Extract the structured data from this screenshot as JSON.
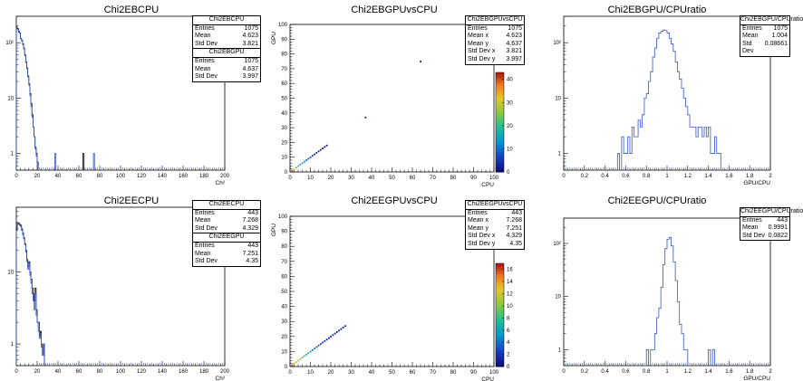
{
  "chart_data": [
    {
      "type": "histogram",
      "title": "Chi2EBCPU",
      "xlabel": "Ch²",
      "ylabel": "",
      "xlim": [
        0,
        200
      ],
      "ylim": [
        0.5,
        300
      ],
      "logy": true,
      "xticks": [
        "0",
        "20",
        "40",
        "60",
        "80",
        "100",
        "120",
        "140",
        "160",
        "180",
        "200"
      ],
      "yticks": [
        "1",
        "10",
        "10²"
      ],
      "series": [
        {
          "name": "Chi2EBCPU",
          "color": "#000000",
          "bins_x": [
            0,
            1,
            2,
            3,
            4,
            5,
            6,
            7,
            8,
            9,
            10,
            11,
            12,
            13,
            14,
            15,
            16,
            17,
            18,
            19,
            20,
            64
          ],
          "values": [
            190,
            180,
            160,
            150,
            120,
            110,
            95,
            80,
            60,
            45,
            35,
            25,
            18,
            12,
            8,
            5,
            3,
            2,
            1.3,
            1,
            0.7,
            1
          ]
        },
        {
          "name": "Chi2EBGPU",
          "color": "#3355cc",
          "bins_x": [
            0,
            1,
            2,
            3,
            4,
            5,
            6,
            7,
            8,
            9,
            10,
            11,
            12,
            13,
            14,
            15,
            16,
            17,
            18,
            19,
            20,
            37,
            74
          ],
          "values": [
            185,
            175,
            155,
            148,
            118,
            108,
            92,
            78,
            58,
            44,
            34,
            24,
            17,
            11,
            7,
            4.5,
            3,
            2,
            1.2,
            0.9,
            0.6,
            1,
            1
          ]
        }
      ],
      "stats": [
        {
          "name": "Chi2EBCPU",
          "rows": [
            [
              "Entries",
              "1075"
            ],
            [
              "Mean",
              "4.623"
            ],
            [
              "Std Dev",
              "3.821"
            ]
          ]
        },
        {
          "name": "Chi2EBGPU",
          "rows": [
            [
              "Entries",
              "1075"
            ],
            [
              "Mean",
              "4.637"
            ],
            [
              "Std Dev",
              "3.997"
            ]
          ]
        }
      ]
    },
    {
      "type": "heatmap",
      "title": "Chi2EBGPUvsCPU",
      "xlabel": "CPU",
      "ylabel": "GPU",
      "xlim": [
        0,
        100
      ],
      "ylim": [
        0,
        100
      ],
      "xticks": [
        "0",
        "10",
        "20",
        "30",
        "40",
        "50",
        "60",
        "70",
        "80",
        "90",
        "100"
      ],
      "yticks": [
        "0",
        "10",
        "20",
        "30",
        "40",
        "50",
        "60",
        "70",
        "80",
        "90",
        "100"
      ],
      "zticks": [
        "0",
        "10",
        "20",
        "30",
        "40"
      ],
      "zmax": 43,
      "points": [
        [
          1,
          1,
          40
        ],
        [
          2,
          2,
          30
        ],
        [
          3,
          3,
          24
        ],
        [
          4,
          4,
          20
        ],
        [
          5,
          5,
          17
        ],
        [
          6,
          6,
          14
        ],
        [
          7,
          7,
          12
        ],
        [
          8,
          8,
          9
        ],
        [
          9,
          9,
          8
        ],
        [
          10,
          10,
          6
        ],
        [
          11,
          11,
          5
        ],
        [
          12,
          12,
          4
        ],
        [
          13,
          13,
          3
        ],
        [
          14,
          14,
          2
        ],
        [
          15,
          15,
          2
        ],
        [
          16,
          16,
          1
        ],
        [
          17,
          17,
          1
        ],
        [
          18,
          18,
          1
        ],
        [
          37,
          37,
          1
        ],
        [
          64,
          75,
          1
        ]
      ],
      "stats": [
        {
          "name": "Chi2EBGPUvsCPU",
          "rows": [
            [
              "Entries",
              "1075"
            ],
            [
              "Mean x",
              "4.623"
            ],
            [
              "Mean y",
              "4.637"
            ],
            [
              "Std Dev x",
              "3.821"
            ],
            [
              "Std Dev y",
              "3.997"
            ]
          ]
        }
      ]
    },
    {
      "type": "histogram",
      "title": "Chi2EBGPU/CPUratio",
      "xlabel": "GPU/CPU",
      "ylabel": "",
      "xlim": [
        0,
        2
      ],
      "ylim": [
        0.5,
        300
      ],
      "logy": true,
      "xticks": [
        "0",
        "0.2",
        "0.4",
        "0.6",
        "0.8",
        "1",
        "1.2",
        "1.4",
        "1.6",
        "1.8",
        "2"
      ],
      "yticks": [
        "1",
        "10",
        "10²"
      ],
      "series": [
        {
          "name": "Chi2EBGPU/CPUratio",
          "color": "#3355cc",
          "bins_x": [
            0.5,
            0.52,
            0.54,
            0.56,
            0.58,
            0.6,
            0.62,
            0.64,
            0.66,
            0.68,
            0.7,
            0.72,
            0.74,
            0.76,
            0.78,
            0.8,
            0.82,
            0.84,
            0.86,
            0.88,
            0.9,
            0.92,
            0.94,
            0.96,
            0.98,
            1.0,
            1.02,
            1.04,
            1.06,
            1.08,
            1.1,
            1.12,
            1.14,
            1.16,
            1.18,
            1.2,
            1.22,
            1.24,
            1.26,
            1.28,
            1.3,
            1.32,
            1.34,
            1.36,
            1.38,
            1.4,
            1.42,
            1.44,
            1.46,
            1.48,
            1.5,
            1.52
          ],
          "values": [
            0,
            1,
            0,
            2,
            1,
            1,
            2,
            1,
            3,
            2,
            2,
            4,
            3,
            5,
            10,
            12,
            20,
            30,
            55,
            80,
            120,
            150,
            160,
            170,
            165,
            150,
            120,
            95,
            70,
            45,
            30,
            22,
            15,
            10,
            7,
            5,
            3,
            3,
            3,
            2,
            3,
            3,
            2,
            3,
            2,
            3,
            1,
            1,
            2,
            1,
            1,
            0
          ]
        }
      ],
      "stats": [
        {
          "name": "Chi2EBGPU/CPUratio",
          "rows": [
            [
              "Entries",
              "1075"
            ],
            [
              "Mean",
              "1.004"
            ],
            [
              "Std Dev",
              "0.08661"
            ]
          ]
        }
      ]
    },
    {
      "type": "histogram",
      "title": "Chi2EECPU",
      "xlabel": "Ch²",
      "ylabel": "",
      "xlim": [
        0,
        200
      ],
      "ylim": [
        0.5,
        80
      ],
      "logy": true,
      "xticks": [
        "0",
        "20",
        "40",
        "60",
        "80",
        "100",
        "120",
        "140",
        "160",
        "180",
        "200"
      ],
      "yticks": [
        "1",
        "10"
      ],
      "series": [
        {
          "name": "Chi2EECPU",
          "color": "#000000",
          "bins_x": [
            0,
            1,
            2,
            3,
            4,
            5,
            6,
            7,
            8,
            9,
            10,
            11,
            12,
            13,
            14,
            15,
            16,
            17,
            18,
            19,
            20,
            21,
            22,
            23,
            24,
            25,
            26
          ],
          "values": [
            40,
            48,
            48,
            46,
            45,
            40,
            35,
            30,
            25,
            20,
            15,
            12,
            14,
            10,
            8,
            6,
            5,
            4,
            6,
            3,
            2,
            2,
            1.3,
            1.5,
            1,
            0.7,
            1
          ]
        },
        {
          "name": "Chi2EEGPU",
          "color": "#3355cc",
          "bins_x": [
            0,
            1,
            2,
            3,
            4,
            5,
            6,
            7,
            8,
            9,
            10,
            11,
            12,
            13,
            14,
            15,
            16,
            17,
            18,
            19,
            20,
            21,
            22,
            23,
            24,
            25,
            26
          ],
          "values": [
            38,
            46,
            47,
            45,
            43,
            38,
            33,
            29,
            24,
            19,
            14,
            11,
            13,
            9,
            7,
            5,
            4,
            3,
            5,
            2.5,
            2,
            1.5,
            1.2,
            1.4,
            0.9,
            0.7,
            1
          ]
        }
      ],
      "stats": [
        {
          "name": "Chi2EECPU",
          "rows": [
            [
              "Entries",
              "443"
            ],
            [
              "Mean",
              "7.268"
            ],
            [
              "Std Dev",
              "4.329"
            ]
          ]
        },
        {
          "name": "Chi2EEGPU",
          "rows": [
            [
              "Entries",
              "443"
            ],
            [
              "Mean",
              "7.251"
            ],
            [
              "Std Dev",
              "4.35"
            ]
          ]
        }
      ]
    },
    {
      "type": "heatmap",
      "title": "Chi2EEGPUvsCPU",
      "xlabel": "CPU",
      "ylabel": "GPU",
      "xlim": [
        0,
        100
      ],
      "ylim": [
        0,
        100
      ],
      "xticks": [
        "0",
        "10",
        "20",
        "30",
        "40",
        "50",
        "60",
        "70",
        "80",
        "90",
        "100"
      ],
      "yticks": [
        "0",
        "10",
        "20",
        "30",
        "40",
        "50",
        "60",
        "70",
        "80",
        "90",
        "100"
      ],
      "zticks": [
        "0",
        "2",
        "4",
        "6",
        "8",
        "10",
        "12",
        "14",
        "16"
      ],
      "zmax": 17,
      "points": [
        [
          1,
          1,
          16
        ],
        [
          2,
          2,
          14
        ],
        [
          3,
          3,
          12
        ],
        [
          4,
          4,
          11
        ],
        [
          5,
          5,
          10
        ],
        [
          6,
          6,
          9
        ],
        [
          7,
          7,
          8
        ],
        [
          8,
          8,
          7
        ],
        [
          9,
          9,
          6
        ],
        [
          10,
          10,
          5
        ],
        [
          11,
          11,
          4
        ],
        [
          12,
          12,
          4
        ],
        [
          13,
          13,
          3
        ],
        [
          14,
          14,
          3
        ],
        [
          15,
          15,
          2
        ],
        [
          16,
          16,
          2
        ],
        [
          17,
          17,
          2
        ],
        [
          18,
          18,
          1
        ],
        [
          19,
          19,
          1
        ],
        [
          20,
          20,
          1
        ],
        [
          21,
          21,
          1
        ],
        [
          22,
          22,
          1
        ],
        [
          23,
          23,
          1
        ],
        [
          24,
          24,
          1
        ],
        [
          25,
          25,
          1
        ],
        [
          26,
          26,
          1
        ],
        [
          27,
          27,
          1
        ]
      ],
      "stats": [
        {
          "name": "Chi2EEGPUvsCPU",
          "rows": [
            [
              "Entries",
              "443"
            ],
            [
              "Mean x",
              "7.268"
            ],
            [
              "Mean y",
              "7.251"
            ],
            [
              "Std Dev x",
              "4.329"
            ],
            [
              "Std Dev y",
              "4.35"
            ]
          ]
        }
      ]
    },
    {
      "type": "histogram",
      "title": "Chi2EEGPU/CPUratio",
      "xlabel": "GPU/CPU",
      "ylabel": "",
      "xlim": [
        0,
        2
      ],
      "ylim": [
        0.5,
        300
      ],
      "logy": true,
      "xticks": [
        "0",
        "0.2",
        "0.4",
        "0.6",
        "0.8",
        "1",
        "1.2",
        "1.4",
        "1.6",
        "1.8",
        "2"
      ],
      "yticks": [
        "1",
        "10",
        "10²"
      ],
      "series": [
        {
          "name": "Chi2EEGPU/CPUratio",
          "color": "#3355cc",
          "bins_x": [
            0.78,
            0.8,
            0.82,
            0.84,
            0.86,
            0.88,
            0.9,
            0.92,
            0.94,
            0.96,
            0.98,
            1.0,
            1.02,
            1.04,
            1.06,
            1.08,
            1.1,
            1.12,
            1.14,
            1.16,
            1.18,
            1.2,
            1.22,
            1.24,
            1.26,
            1.28,
            1.3,
            1.32,
            1.34,
            1.36,
            1.38,
            1.4,
            1.42,
            1.44,
            1.46
          ],
          "values": [
            0,
            1,
            0,
            1,
            1,
            2,
            4,
            6,
            15,
            40,
            80,
            120,
            130,
            90,
            45,
            20,
            8,
            3,
            2,
            1,
            1,
            0,
            0,
            0,
            0,
            0,
            0,
            0,
            0,
            0,
            0,
            1,
            0,
            1,
            0
          ]
        }
      ],
      "stats": [
        {
          "name": "Chi2EEGPU/CPUratio",
          "rows": [
            [
              "Entries",
              "443"
            ],
            [
              "Mean",
              "0.9991"
            ],
            [
              "Std Dev",
              "0.0822"
            ]
          ]
        }
      ]
    }
  ]
}
